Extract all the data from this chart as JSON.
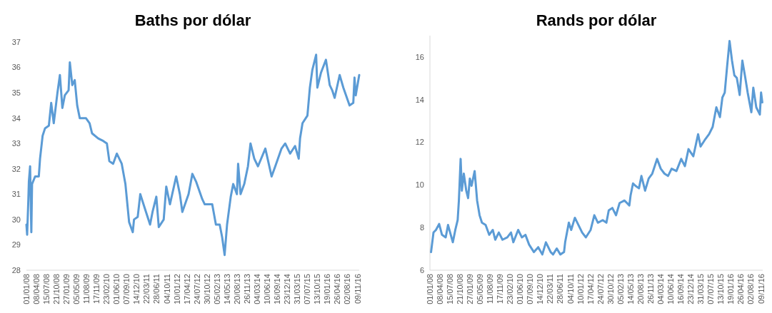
{
  "chart_data": [
    {
      "type": "line",
      "title": "Baths por dólar",
      "xlim": [
        "2008-01-01",
        "2016-11-25"
      ],
      "ylim": [
        28,
        37
      ],
      "yticks": [
        28,
        29,
        30,
        31,
        32,
        33,
        34,
        35,
        36,
        37
      ],
      "xticks": [
        {
          "value": "2008-01-01",
          "label": "01/01/08"
        },
        {
          "value": "2008-04-08",
          "label": "08/04/08"
        },
        {
          "value": "2008-07-15",
          "label": "15/07/08"
        },
        {
          "value": "2008-10-21",
          "label": "21/10/08"
        },
        {
          "value": "2009-01-27",
          "label": "27/01/09"
        },
        {
          "value": "2009-05-05",
          "label": "05/05/09"
        },
        {
          "value": "2009-08-11",
          "label": "11/08/09"
        },
        {
          "value": "2009-11-17",
          "label": "17/11/09"
        },
        {
          "value": "2010-02-23",
          "label": "23/02/10"
        },
        {
          "value": "2010-06-01",
          "label": "01/06/10"
        },
        {
          "value": "2010-09-07",
          "label": "07/09/10"
        },
        {
          "value": "2010-12-14",
          "label": "14/12/10"
        },
        {
          "value": "2011-03-22",
          "label": "22/03/11"
        },
        {
          "value": "2011-06-28",
          "label": "28/06/11"
        },
        {
          "value": "2011-10-04",
          "label": "04/10/11"
        },
        {
          "value": "2012-01-10",
          "label": "10/01/12"
        },
        {
          "value": "2012-04-17",
          "label": "17/04/12"
        },
        {
          "value": "2012-07-24",
          "label": "24/07/12"
        },
        {
          "value": "2012-10-30",
          "label": "30/10/12"
        },
        {
          "value": "2013-02-05",
          "label": "05/02/13"
        },
        {
          "value": "2013-05-14",
          "label": "14/05/13"
        },
        {
          "value": "2013-08-20",
          "label": "20/08/13"
        },
        {
          "value": "2013-11-26",
          "label": "26/11/13"
        },
        {
          "value": "2014-03-04",
          "label": "04/03/14"
        },
        {
          "value": "2014-06-10",
          "label": "10/06/14"
        },
        {
          "value": "2014-09-16",
          "label": "16/09/14"
        },
        {
          "value": "2014-12-23",
          "label": "23/12/14"
        },
        {
          "value": "2015-03-31",
          "label": "31/03/15"
        },
        {
          "value": "2015-07-07",
          "label": "07/07/15"
        },
        {
          "value": "2015-10-13",
          "label": "13/10/15"
        },
        {
          "value": "2016-01-19",
          "label": "19/01/16"
        },
        {
          "value": "2016-04-26",
          "label": "26/04/16"
        },
        {
          "value": "2016-08-02",
          "label": "02/08/16"
        },
        {
          "value": "2016-11-09",
          "label": "09/11/16"
        }
      ],
      "series": [
        {
          "color": "#5b9bd5",
          "x": [
            "2008-01-01",
            "2008-01-08",
            "2008-01-20",
            "2008-01-25",
            "2008-02-06",
            "2008-02-18",
            "2008-02-25",
            "2008-03-26",
            "2008-05-01",
            "2008-05-13",
            "2008-06-07",
            "2008-07-01",
            "2008-08-07",
            "2008-08-30",
            "2008-09-24",
            "2008-10-30",
            "2008-11-23",
            "2008-12-17",
            "2009-01-10",
            "2009-02-16",
            "2009-02-28",
            "2009-03-24",
            "2009-04-17",
            "2009-05-11",
            "2009-06-05",
            "2009-08-04",
            "2009-09-09",
            "2009-10-03",
            "2009-12-02",
            "2010-01-20",
            "2010-02-25",
            "2010-03-21",
            "2010-04-27",
            "2010-06-02",
            "2010-07-20",
            "2010-08-25",
            "2010-09-30",
            "2010-11-05",
            "2010-11-17",
            "2010-12-23",
            "2011-01-17",
            "2011-03-06",
            "2011-04-23",
            "2011-05-17",
            "2011-06-23",
            "2011-07-17",
            "2011-09-03",
            "2011-09-28",
            "2011-11-03",
            "2012-01-03",
            "2012-02-08",
            "2012-03-03",
            "2012-05-03",
            "2012-06-09",
            "2012-07-15",
            "2012-09-14",
            "2012-10-08",
            "2012-12-20",
            "2013-01-25",
            "2013-03-03",
            "2013-03-27",
            "2013-04-20",
            "2013-05-14",
            "2013-06-19",
            "2013-07-13",
            "2013-08-18",
            "2013-08-30",
            "2013-09-23",
            "2013-10-29",
            "2013-12-04",
            "2013-12-29",
            "2014-02-04",
            "2014-03-12",
            "2014-05-23",
            "2014-07-23",
            "2014-08-28",
            "2014-10-28",
            "2014-12-03",
            "2015-01-20",
            "2015-03-09",
            "2015-04-14",
            "2015-04-27",
            "2015-05-21",
            "2015-07-08",
            "2015-08-01",
            "2015-08-25",
            "2015-10-01",
            "2015-10-13",
            "2015-11-18",
            "2016-01-05",
            "2016-02-11",
            "2016-03-06",
            "2016-03-30",
            "2016-05-18",
            "2016-06-23",
            "2016-08-23",
            "2016-09-28",
            "2016-10-10",
            "2016-10-22",
            "2016-11-25"
          ],
          "values": [
            29.8,
            29.4,
            30.8,
            31.5,
            32.1,
            29.5,
            31.4,
            31.7,
            31.7,
            32.4,
            33.3,
            33.6,
            33.7,
            34.6,
            33.8,
            35.0,
            35.7,
            34.4,
            34.9,
            35.1,
            36.2,
            35.3,
            35.5,
            34.5,
            34.0,
            34.0,
            33.8,
            33.4,
            33.2,
            33.1,
            33.0,
            32.3,
            32.2,
            32.6,
            32.2,
            31.4,
            29.9,
            29.5,
            30.0,
            30.1,
            31.0,
            30.4,
            29.8,
            30.3,
            30.9,
            29.7,
            30.0,
            31.3,
            30.6,
            31.7,
            31.0,
            30.3,
            31.0,
            31.8,
            31.5,
            30.8,
            30.6,
            30.6,
            29.8,
            29.8,
            29.3,
            28.6,
            29.8,
            30.9,
            31.4,
            31.0,
            32.2,
            31.0,
            31.4,
            32.1,
            33.0,
            32.4,
            32.1,
            32.8,
            31.7,
            32.1,
            32.8,
            33.0,
            32.6,
            32.9,
            32.4,
            33.2,
            33.8,
            34.1,
            35.2,
            35.9,
            36.5,
            35.2,
            35.8,
            36.3,
            35.3,
            35.1,
            34.8,
            35.7,
            35.2,
            34.5,
            34.6,
            35.6,
            34.9,
            35.7
          ]
        }
      ]
    },
    {
      "type": "line",
      "title": "Rands por dólar",
      "xlim": [
        "2008-01-01",
        "2016-11-25"
      ],
      "ylim": [
        6,
        17
      ],
      "yticks": [
        6,
        8,
        10,
        12,
        14,
        16
      ],
      "xticks": [
        {
          "value": "2008-01-01",
          "label": "01/01/08"
        },
        {
          "value": "2008-04-08",
          "label": "08/04/08"
        },
        {
          "value": "2008-07-15",
          "label": "15/07/08"
        },
        {
          "value": "2008-10-21",
          "label": "21/10/08"
        },
        {
          "value": "2009-01-27",
          "label": "27/01/09"
        },
        {
          "value": "2009-05-05",
          "label": "05/05/09"
        },
        {
          "value": "2009-08-11",
          "label": "11/08/09"
        },
        {
          "value": "2009-11-17",
          "label": "17/11/09"
        },
        {
          "value": "2010-02-23",
          "label": "23/02/10"
        },
        {
          "value": "2010-06-01",
          "label": "01/06/10"
        },
        {
          "value": "2010-09-07",
          "label": "07/09/10"
        },
        {
          "value": "2010-12-14",
          "label": "14/12/10"
        },
        {
          "value": "2011-03-22",
          "label": "22/03/11"
        },
        {
          "value": "2011-06-28",
          "label": "28/06/11"
        },
        {
          "value": "2011-10-04",
          "label": "04/10/11"
        },
        {
          "value": "2012-01-10",
          "label": "10/01/12"
        },
        {
          "value": "2012-04-17",
          "label": "17/04/12"
        },
        {
          "value": "2012-07-24",
          "label": "24/07/12"
        },
        {
          "value": "2012-10-30",
          "label": "30/10/12"
        },
        {
          "value": "2013-02-05",
          "label": "05/02/13"
        },
        {
          "value": "2013-05-14",
          "label": "14/05/13"
        },
        {
          "value": "2013-08-20",
          "label": "20/08/13"
        },
        {
          "value": "2013-11-26",
          "label": "26/11/13"
        },
        {
          "value": "2014-03-04",
          "label": "04/03/14"
        },
        {
          "value": "2014-06-10",
          "label": "10/06/14"
        },
        {
          "value": "2014-09-16",
          "label": "16/09/14"
        },
        {
          "value": "2014-12-23",
          "label": "23/12/14"
        },
        {
          "value": "2015-03-31",
          "label": "31/03/15"
        },
        {
          "value": "2015-07-07",
          "label": "07/07/15"
        },
        {
          "value": "2015-10-13",
          "label": "13/10/15"
        },
        {
          "value": "2016-01-19",
          "label": "19/01/16"
        },
        {
          "value": "2016-04-26",
          "label": "26/04/16"
        },
        {
          "value": "2016-08-02",
          "label": "02/08/16"
        },
        {
          "value": "2016-11-09",
          "label": "09/11/16"
        }
      ],
      "series": [
        {
          "color": "#5b9bd5",
          "x": [
            "2008-01-12",
            "2008-02-05",
            "2008-02-29",
            "2008-03-31",
            "2008-04-28",
            "2008-06-03",
            "2008-06-26",
            "2008-08-12",
            "2008-09-05",
            "2008-09-28",
            "2008-10-10",
            "2008-10-27",
            "2008-11-08",
            "2008-11-27",
            "2008-12-21",
            "2009-01-08",
            "2009-01-25",
            "2009-02-11",
            "2009-03-13",
            "2009-04-06",
            "2009-04-30",
            "2009-05-23",
            "2009-06-28",
            "2009-08-02",
            "2009-09-06",
            "2009-09-30",
            "2009-11-04",
            "2009-12-10",
            "2010-01-26",
            "2010-03-03",
            "2010-03-26",
            "2010-05-12",
            "2010-06-17",
            "2010-07-22",
            "2010-08-27",
            "2010-10-13",
            "2010-11-24",
            "2011-01-03",
            "2011-02-07",
            "2011-03-26",
            "2011-04-18",
            "2011-05-24",
            "2011-06-28",
            "2011-08-03",
            "2011-08-14",
            "2011-09-19",
            "2011-10-12",
            "2011-11-17",
            "2011-12-22",
            "2012-01-27",
            "2012-03-03",
            "2012-04-19",
            "2012-05-25",
            "2012-06-29",
            "2012-08-15",
            "2012-09-20",
            "2012-10-13",
            "2012-11-17",
            "2012-12-23",
            "2013-01-27",
            "2013-03-16",
            "2013-05-02",
            "2013-05-14",
            "2013-06-07",
            "2013-06-30",
            "2013-08-04",
            "2013-08-28",
            "2013-10-03",
            "2013-11-07",
            "2013-12-12",
            "2014-01-05",
            "2014-01-28",
            "2014-03-05",
            "2014-04-10",
            "2014-05-15",
            "2014-06-19",
            "2014-08-05",
            "2014-09-21",
            "2014-10-27",
            "2014-12-01",
            "2015-01-17",
            "2015-03-05",
            "2015-03-29",
            "2015-05-15",
            "2015-06-20",
            "2015-07-25",
            "2015-08-30",
            "2015-10-04",
            "2015-10-28",
            "2015-11-20",
            "2015-12-14",
            "2016-01-06",
            "2016-01-30",
            "2016-02-22",
            "2016-03-17",
            "2016-04-14",
            "2016-05-10",
            "2016-06-08",
            "2016-07-01",
            "2016-08-06",
            "2016-08-25",
            "2016-09-23",
            "2016-10-28",
            "2016-11-09",
            "2016-11-21"
          ],
          "values": [
            6.85,
            7.77,
            7.89,
            8.17,
            7.66,
            7.54,
            8.12,
            7.31,
            7.89,
            8.35,
            9.27,
            11.22,
            9.73,
            10.53,
            9.73,
            9.38,
            10.3,
            9.96,
            10.65,
            9.27,
            8.58,
            8.23,
            8.12,
            7.66,
            7.89,
            7.43,
            7.77,
            7.43,
            7.54,
            7.77,
            7.31,
            7.89,
            7.54,
            7.66,
            7.2,
            6.85,
            7.08,
            6.74,
            7.31,
            6.85,
            6.74,
            7.02,
            6.74,
            6.85,
            7.31,
            8.23,
            7.89,
            8.46,
            8.12,
            7.77,
            7.54,
            7.89,
            8.58,
            8.23,
            8.35,
            8.23,
            8.81,
            8.92,
            8.58,
            9.15,
            9.27,
            9.04,
            9.5,
            10.07,
            9.96,
            9.84,
            10.42,
            9.73,
            10.3,
            10.53,
            10.88,
            11.22,
            10.76,
            10.53,
            10.42,
            10.76,
            10.65,
            11.22,
            10.88,
            11.68,
            11.34,
            12.38,
            11.8,
            12.15,
            12.38,
            12.72,
            13.64,
            13.18,
            14.1,
            14.33,
            15.6,
            16.75,
            15.83,
            15.14,
            15.02,
            14.22,
            15.83,
            15.02,
            14.33,
            13.41,
            14.56,
            13.64,
            13.3,
            14.33,
            13.87
          ]
        }
      ]
    }
  ]
}
